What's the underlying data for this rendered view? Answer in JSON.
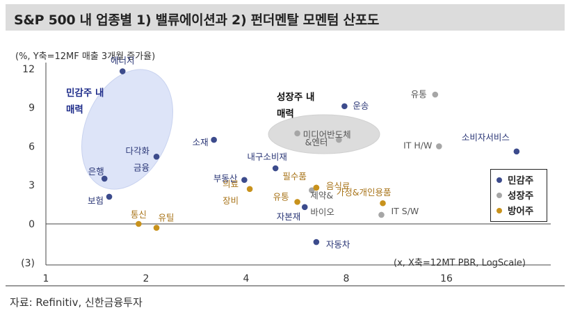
{
  "title": "S&P 500 내 업종별 1) 밸류에이션과 2) 펀더멘탈 모멘텀 산포도",
  "unit_note": "(%, Y축=12MF 매출 3개월 증가율)",
  "xaxis_note": "(x, X축=12MT PBR, LogScale)",
  "source": "자료: Refinitiv, 신한금융투자",
  "chart_data": {
    "type": "scatter",
    "x_scale": "log",
    "xlim": [
      1,
      28
    ],
    "ylim": [
      -4,
      12
    ],
    "x_ticks": [
      1,
      2,
      4,
      8,
      16
    ],
    "y_ticks": [
      -3,
      0,
      3,
      6,
      9,
      12
    ],
    "y_tick_labels": [
      "(3)",
      "0",
      "3",
      "6",
      "9",
      "12"
    ],
    "zones": [
      {
        "name": "민감주 내 매력",
        "lines": [
          "민감주 내",
          "매력"
        ],
        "color": "#1f2d8a"
      },
      {
        "name": "성장주 내 매력",
        "lines": [
          "성장주 내",
          "매력"
        ],
        "color": "#111111"
      }
    ],
    "colors": {
      "민감주": "#3c4b8c",
      "성장주": "#a6a6a6",
      "방어주": "#c8921c"
    },
    "series": [
      {
        "name": "민감주",
        "points": [
          {
            "label": "에너지",
            "x": 1.7,
            "y": 11.8
          },
          {
            "label": "다각화\n금융",
            "x": 2.15,
            "y": 5.2
          },
          {
            "label": "은행",
            "x": 1.5,
            "y": 3.5
          },
          {
            "label": "보험",
            "x": 1.55,
            "y": 2.1
          },
          {
            "label": "소재",
            "x": 3.2,
            "y": 6.5
          },
          {
            "label": "내구소비재",
            "x": 4.9,
            "y": 4.3
          },
          {
            "label": "부동산",
            "x": 3.95,
            "y": 3.4
          },
          {
            "label": "운송",
            "x": 7.9,
            "y": 9.1
          },
          {
            "label": "자본재",
            "x": 6.0,
            "y": 1.3
          },
          {
            "label": "자동차",
            "x": 6.5,
            "y": -1.4
          },
          {
            "label": "소비자서비스",
            "x": 26.0,
            "y": 5.6
          }
        ]
      },
      {
        "name": "성장주",
        "points": [
          {
            "label": "유통",
            "x": 14.8,
            "y": 10.0
          },
          {
            "label": "미디어반도체",
            "x": 5.7,
            "y": 7.0
          },
          {
            "label": "&엔터",
            "x": 7.6,
            "y": 6.5
          },
          {
            "label": "IT H/W",
            "x": 15.2,
            "y": 6.0
          },
          {
            "label": "제약&\n바이오",
            "x": 6.3,
            "y": 2.6
          },
          {
            "label": "IT S/W",
            "x": 10.2,
            "y": 0.7
          }
        ]
      },
      {
        "name": "방어주",
        "points": [
          {
            "label": "필수품",
            "x": 6.5,
            "y": 2.8
          },
          {
            "label": "의료\n장비",
            "x": 4.1,
            "y": 2.7
          },
          {
            "label": "유통",
            "x": 5.7,
            "y": 1.7
          },
          {
            "label": "음식료",
            "x": 6.5,
            "y": 2.8
          },
          {
            "label": "가정&개인용품",
            "x": 10.3,
            "y": 1.6
          },
          {
            "label": "통신",
            "x": 1.9,
            "y": 0.0
          },
          {
            "label": "유틸",
            "x": 2.15,
            "y": -0.3
          }
        ]
      }
    ],
    "legend": [
      "민감주",
      "성장주",
      "방어주"
    ],
    "legend_position": "right"
  }
}
